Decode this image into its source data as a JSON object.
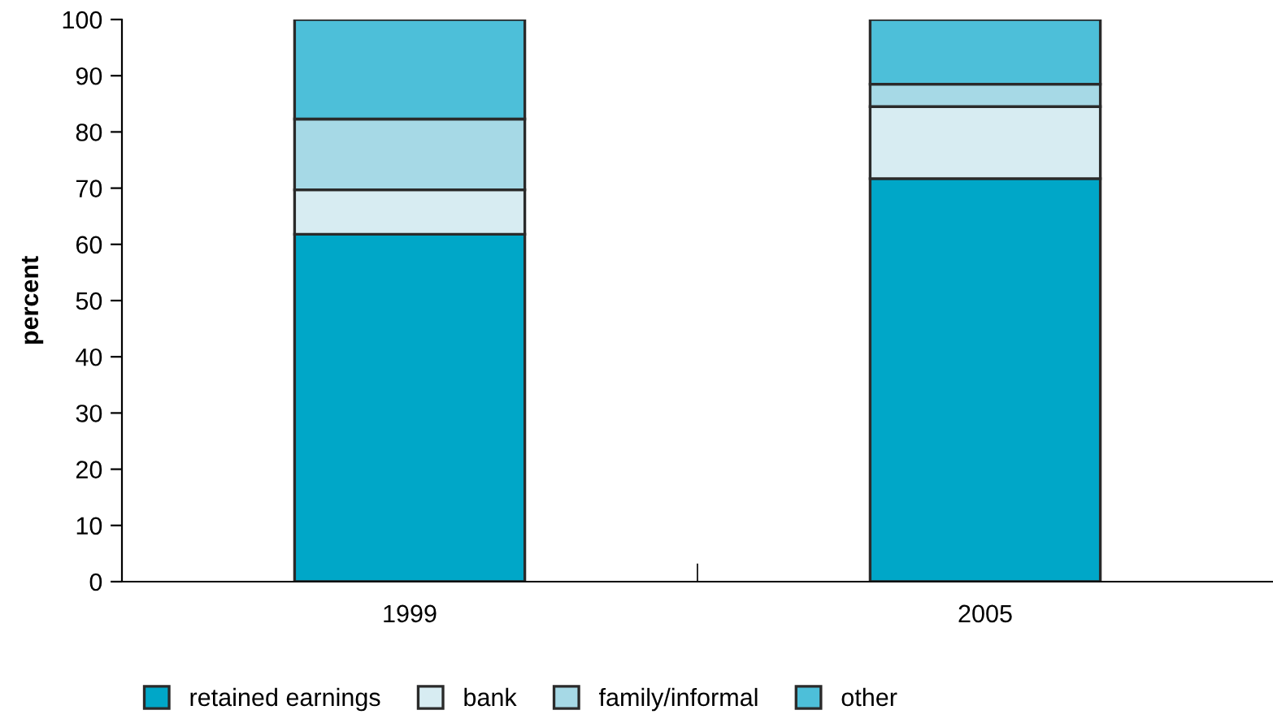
{
  "chart_data": {
    "type": "bar",
    "stacked": true,
    "ylabel": "percent",
    "categories": [
      "1999",
      "2005"
    ],
    "series": [
      {
        "name": "retained earnings",
        "color": "#00a7c8",
        "values": [
          61.8,
          71.7
        ]
      },
      {
        "name": "bank",
        "color": "#d7ecf2",
        "values": [
          7.9,
          12.8
        ]
      },
      {
        "name": "family/informal",
        "color": "#a6d9e6",
        "values": [
          12.6,
          4.0
        ]
      },
      {
        "name": "other",
        "color": "#4dbfd9",
        "values": [
          17.7,
          11.5
        ]
      }
    ],
    "ylim": [
      0,
      100
    ],
    "yticks": [
      0,
      10,
      20,
      30,
      40,
      50,
      60,
      70,
      80,
      90,
      100
    ],
    "grid": false,
    "legend": "bottom"
  }
}
